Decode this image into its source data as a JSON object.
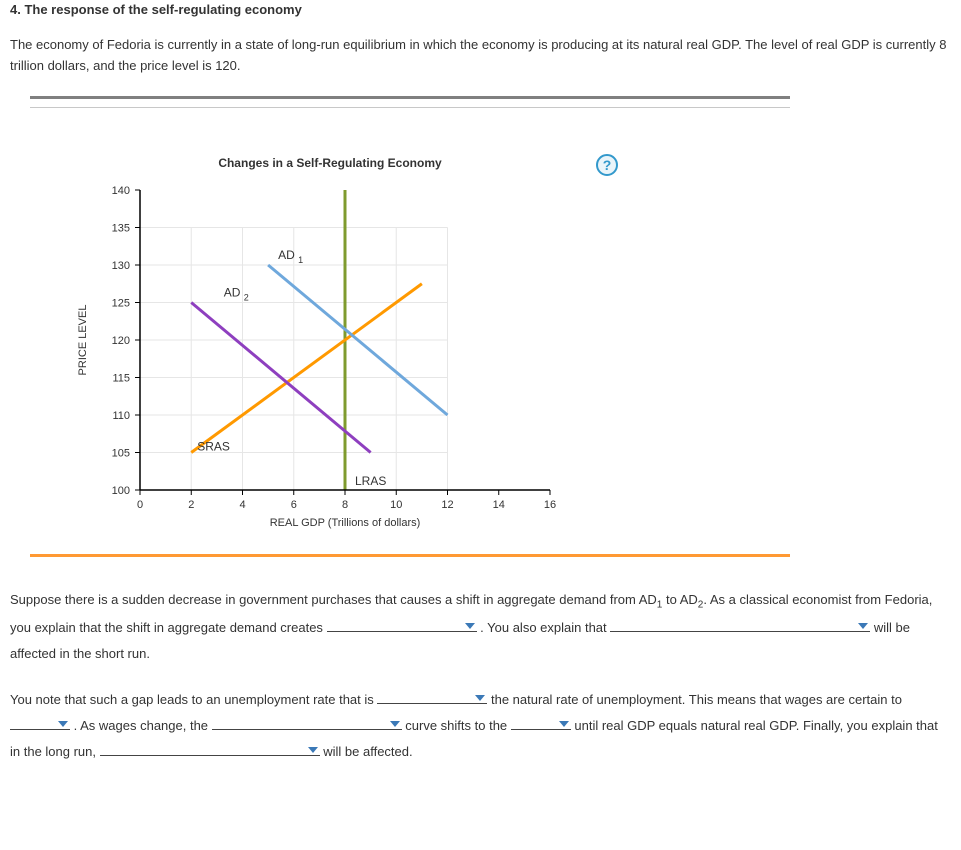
{
  "title": "4. The response of the self-regulating economy",
  "intro": "The economy of Fedoria is currently in a state of long-run equilibrium in which the economy is producing at its natural real GDP. The level of real GDP is currently 8 trillion dollars, and the price level is 120.",
  "help_label": "?",
  "chart": {
    "title": "Changes in a Self-Regulating Economy",
    "x_label": "REAL GDP (Trillions of dollars)",
    "y_label": "PRICE LEVEL",
    "x_ticks": [
      0,
      2,
      4,
      6,
      8,
      10,
      12,
      14,
      16
    ],
    "y_ticks": [
      100,
      105,
      110,
      115,
      120,
      125,
      130,
      135,
      140
    ],
    "x_min": 0,
    "x_max": 16,
    "y_min": 100,
    "y_max": 140,
    "grid_x_max_line": 12,
    "grid_y_max_line": 135,
    "grid_color": "#e6e6e6",
    "axis_color": "#000000",
    "tick_font_size": 11,
    "label_font_size": 11,
    "lines": {
      "LRAS": {
        "color": "#7f9b2e",
        "width": 3,
        "x": 8,
        "y1": 100,
        "y2": 140,
        "label_pos": "below"
      },
      "SRAS": {
        "color": "#ff9900",
        "width": 3,
        "x1": 2,
        "y1": 105,
        "x2": 11,
        "y2": 127.5,
        "label_pos": "left-low"
      },
      "AD1": {
        "color": "#6fa8dc",
        "width": 3,
        "x1": 5,
        "y1": 130,
        "x2": 12,
        "y2": 110,
        "label_pos": "top",
        "label_x": 5,
        "label_y": 130
      },
      "AD2": {
        "color": "#8e3fbf",
        "width": 3,
        "x1": 2,
        "y1": 125,
        "x2": 9,
        "y2": 105,
        "label_pos": "top",
        "label_x": 3.5,
        "label_y": 125
      }
    }
  },
  "para1": {
    "t1": "Suppose there is a sudden decrease in government purchases that causes a shift in aggregate demand from AD",
    "sub1": "1",
    "t2": " to AD",
    "sub2": "2",
    "t3": ". As a classical economist from Fedoria, you explain that the shift in aggregate demand creates ",
    "t4": " . You also explain that ",
    "t5": " will be affected in the short run."
  },
  "para2": {
    "t1": "You note that such a gap leads to an unemployment rate that is ",
    "t2": " the natural rate of unemployment. This means that wages are certain to ",
    "t3": " . As wages change, the ",
    "t4": " curve shifts to the ",
    "t5": " until real GDP equals natural real GDP. Finally, you explain that in the long run, ",
    "t6": " will be affected."
  }
}
